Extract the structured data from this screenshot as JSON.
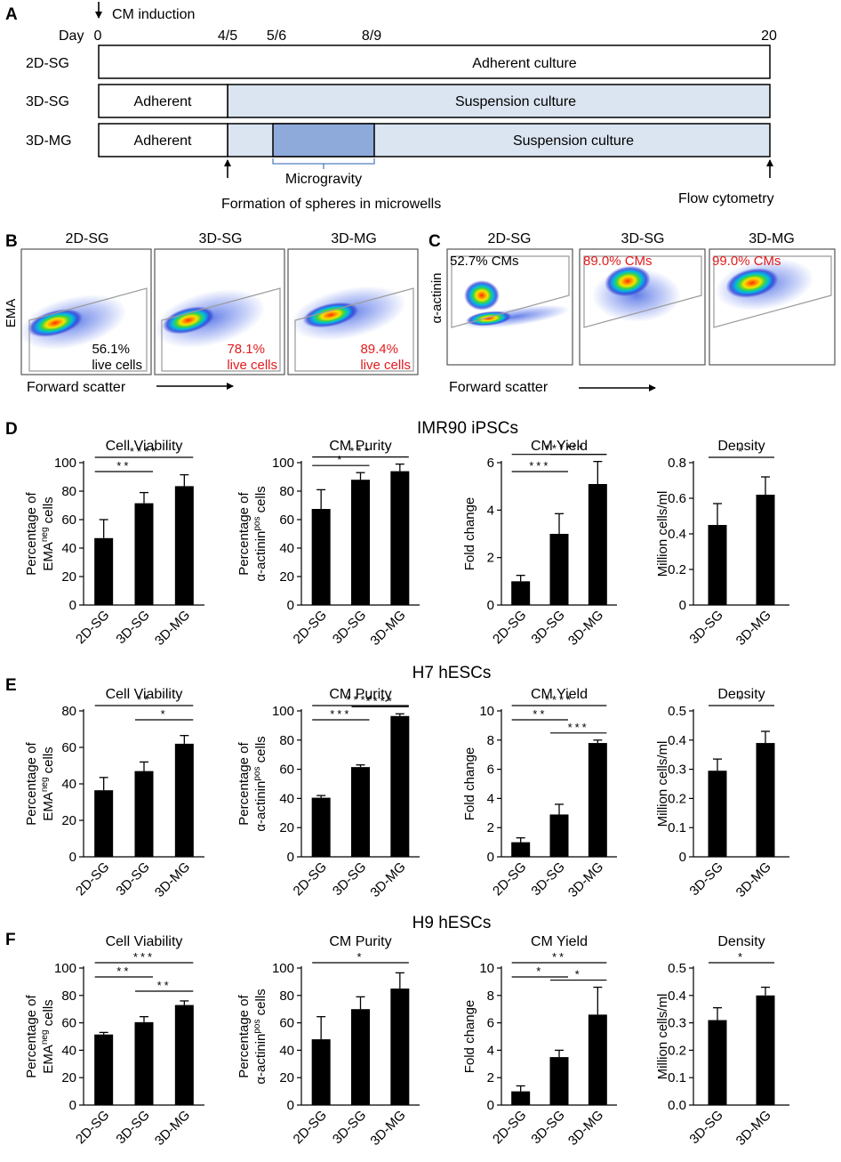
{
  "colors": {
    "ink": "#000000",
    "accent_red": "#e31a1c",
    "suspension_fill": "#dbe5f1",
    "microgravity_fill": "#8eaadb",
    "brace": "#4f81bd",
    "gate": "#9a9a9a"
  },
  "panelA": {
    "letter": "A",
    "induction_label": "CM induction",
    "day_label": "Day",
    "ticks": [
      "0",
      "4/5",
      "5/6",
      "8/9",
      "20"
    ],
    "rows": [
      {
        "name": "2D-SG",
        "segments": [
          "Adherent culture"
        ]
      },
      {
        "name": "3D-SG",
        "segments": [
          "Adherent",
          "Suspension culture"
        ]
      },
      {
        "name": "3D-MG",
        "segments": [
          "Adherent",
          "Suspension culture"
        ]
      }
    ],
    "microgravity_label": "Microgravity",
    "spheres_label": "Formation of spheres in microwells",
    "flow_label": "Flow cytometry"
  },
  "panelB": {
    "letter": "B",
    "ylabel": "EMA",
    "xlabel": "Forward scatter",
    "plots": [
      {
        "title": "2D-SG",
        "value": "56.1%",
        "suffix": "live cells",
        "highlight": false
      },
      {
        "title": "3D-SG",
        "value": "78.1%",
        "suffix": "live cells",
        "highlight": true
      },
      {
        "title": "3D-MG",
        "value": "89.4%",
        "suffix": "live cells",
        "highlight": true
      }
    ]
  },
  "panelC": {
    "letter": "C",
    "ylabel": "α-actinin",
    "xlabel": "Forward scatter",
    "plots": [
      {
        "title": "2D-SG",
        "label": "52.7% CMs",
        "highlight": false
      },
      {
        "title": "3D-SG",
        "label": "89.0% CMs",
        "highlight": true
      },
      {
        "title": "3D-MG",
        "label": "99.0% CMs",
        "highlight": true
      }
    ]
  },
  "chart_data": [
    {
      "panel": "D",
      "cell_line": "IMR90 iPSCs",
      "type": "bar",
      "title": "Cell Viability",
      "ylabel": "Percentage of EMA^neg cells",
      "categories": [
        "2D-SG",
        "3D-SG",
        "3D-MG"
      ],
      "values": [
        47,
        71.5,
        83.5
      ],
      "errors": [
        13,
        7.5,
        8
      ],
      "ylim": [
        0,
        100
      ],
      "yticks": [
        "0",
        "20",
        "40",
        "60",
        "80",
        "100"
      ],
      "significance": [
        {
          "from": 0,
          "to": 1,
          "label": "**"
        },
        {
          "from": 0,
          "to": 2,
          "label": "****"
        }
      ]
    },
    {
      "panel": "D",
      "cell_line": "IMR90 iPSCs",
      "type": "bar",
      "title": "CM Purity",
      "ylabel": "Percentage of α-actinin^pos cells",
      "categories": [
        "2D-SG",
        "3D-SG",
        "3D-MG"
      ],
      "values": [
        67.5,
        88,
        94
      ],
      "errors": [
        13.5,
        5,
        5
      ],
      "ylim": [
        0,
        100
      ],
      "yticks": [
        "0",
        "20",
        "40",
        "60",
        "80",
        "100"
      ],
      "significance": [
        {
          "from": 0,
          "to": 1,
          "label": "*"
        },
        {
          "from": 0,
          "to": 2,
          "label": "***"
        }
      ]
    },
    {
      "panel": "D",
      "cell_line": "IMR90 iPSCs",
      "type": "bar",
      "title": "CM Yield",
      "ylabel": "Fold change",
      "categories": [
        "2D-SG",
        "3D-SG",
        "3D-MG"
      ],
      "values": [
        1,
        3,
        5.1
      ],
      "errors": [
        0.25,
        0.85,
        0.95
      ],
      "ylim": [
        0,
        6
      ],
      "yticks": [
        "0",
        "2",
        "4",
        "6"
      ],
      "significance": [
        {
          "from": 0,
          "to": 1,
          "label": "***"
        },
        {
          "from": 1,
          "to": 2,
          "label": "**"
        },
        {
          "from": 0,
          "to": 2,
          "label": "****"
        }
      ]
    },
    {
      "panel": "D",
      "cell_line": "IMR90 iPSCs",
      "type": "bar",
      "title": "Density",
      "ylabel": "Million cells/ml",
      "categories": [
        "3D-SG",
        "3D-MG"
      ],
      "values": [
        0.45,
        0.62
      ],
      "errors": [
        0.12,
        0.1
      ],
      "ylim": [
        0,
        0.8
      ],
      "yticks": [
        "0",
        "0.2",
        "0.4",
        "0.6",
        "0.8"
      ],
      "significance": [
        {
          "from": 0,
          "to": 1,
          "label": "*"
        }
      ]
    },
    {
      "panel": "E",
      "cell_line": "H7 hESCs",
      "type": "bar",
      "title": "Cell Viability",
      "ylabel": "Percentage of EMA^neg cells",
      "categories": [
        "2D-SG",
        "3D-SG",
        "3D-MG"
      ],
      "values": [
        36.5,
        47,
        62
      ],
      "errors": [
        7,
        5,
        4.5
      ],
      "ylim": [
        0,
        80
      ],
      "yticks": [
        "0",
        "20",
        "40",
        "60",
        "80"
      ],
      "significance": [
        {
          "from": 1,
          "to": 2,
          "label": "*"
        },
        {
          "from": 0,
          "to": 2,
          "label": "**"
        }
      ]
    },
    {
      "panel": "E",
      "cell_line": "H7 hESCs",
      "type": "bar",
      "title": "CM Purity",
      "ylabel": "Percentage of α-actinin^pos cells",
      "categories": [
        "2D-SG",
        "3D-SG",
        "3D-MG"
      ],
      "values": [
        40.5,
        61.5,
        96.5
      ],
      "errors": [
        1.5,
        1.5,
        1.5
      ],
      "ylim": [
        0,
        100
      ],
      "yticks": [
        "0",
        "20",
        "40",
        "60",
        "80",
        "100"
      ],
      "significance": [
        {
          "from": 0,
          "to": 1,
          "label": "***"
        },
        {
          "from": 1,
          "to": 2,
          "label": "****"
        },
        {
          "from": 0,
          "to": 2,
          "label": "****"
        }
      ]
    },
    {
      "panel": "E",
      "cell_line": "H7 hESCs",
      "type": "bar",
      "title": "CM Yield",
      "ylabel": "Fold change",
      "categories": [
        "2D-SG",
        "3D-SG",
        "3D-MG"
      ],
      "values": [
        1,
        2.9,
        7.8
      ],
      "errors": [
        0.3,
        0.7,
        0.2
      ],
      "ylim": [
        0,
        10
      ],
      "yticks": [
        "0",
        "2",
        "4",
        "6",
        "8",
        "10"
      ],
      "significance": [
        {
          "from": 0,
          "to": 1,
          "label": "**"
        },
        {
          "from": 1,
          "to": 2,
          "label": "***"
        },
        {
          "from": 0,
          "to": 2,
          "label": "****"
        }
      ]
    },
    {
      "panel": "E",
      "cell_line": "H7 hESCs",
      "type": "bar",
      "title": "Density",
      "ylabel": "Million cells/ml",
      "categories": [
        "3D-SG",
        "3D-MG"
      ],
      "values": [
        0.295,
        0.39
      ],
      "errors": [
        0.04,
        0.04
      ],
      "ylim": [
        0,
        0.5
      ],
      "yticks": [
        "0",
        "0.1",
        "0.2",
        "0.3",
        "0.4",
        "0.5"
      ],
      "significance": [
        {
          "from": 0,
          "to": 1,
          "label": "*"
        }
      ]
    },
    {
      "panel": "F",
      "cell_line": "H9 hESCs",
      "type": "bar",
      "title": "Cell Viability",
      "ylabel": "Percentage of EMA^neg cells",
      "categories": [
        "2D-SG",
        "3D-SG",
        "3D-MG"
      ],
      "values": [
        51.5,
        60.5,
        73
      ],
      "errors": [
        1.5,
        4,
        3
      ],
      "ylim": [
        0,
        100
      ],
      "yticks": [
        "0",
        "20",
        "40",
        "60",
        "80",
        "100"
      ],
      "significance": [
        {
          "from": 0,
          "to": 1,
          "label": "**"
        },
        {
          "from": 1,
          "to": 2,
          "label": "**"
        },
        {
          "from": 0,
          "to": 2,
          "label": "***"
        }
      ]
    },
    {
      "panel": "F",
      "cell_line": "H9 hESCs",
      "type": "bar",
      "title": "CM Purity",
      "ylabel": "Percentage of α-actinin^pos cells",
      "categories": [
        "2D-SG",
        "3D-SG",
        "3D-MG"
      ],
      "values": [
        48,
        70,
        85
      ],
      "errors": [
        16.5,
        9,
        11.5
      ],
      "ylim": [
        0,
        100
      ],
      "yticks": [
        "0",
        "20",
        "40",
        "60",
        "80",
        "100"
      ],
      "significance": [
        {
          "from": 0,
          "to": 2,
          "label": "*"
        }
      ]
    },
    {
      "panel": "F",
      "cell_line": "H9 hESCs",
      "type": "bar",
      "title": "CM Yield",
      "ylabel": "Fold change",
      "categories": [
        "2D-SG",
        "3D-SG",
        "3D-MG"
      ],
      "values": [
        1,
        3.5,
        6.6
      ],
      "errors": [
        0.4,
        0.5,
        2
      ],
      "ylim": [
        0,
        10
      ],
      "yticks": [
        "0",
        "2",
        "4",
        "6",
        "8",
        "10"
      ],
      "significance": [
        {
          "from": 0,
          "to": 1,
          "label": "*"
        },
        {
          "from": 1,
          "to": 2,
          "label": "*"
        },
        {
          "from": 0,
          "to": 2,
          "label": "**"
        }
      ]
    },
    {
      "panel": "F",
      "cell_line": "H9 hESCs",
      "type": "bar",
      "title": "Density",
      "ylabel": "Million cells/ml",
      "categories": [
        "3D-SG",
        "3D-MG"
      ],
      "values": [
        0.31,
        0.4
      ],
      "errors": [
        0.045,
        0.03
      ],
      "ylim": [
        0,
        0.5
      ],
      "yticks": [
        "0.0",
        "0.1",
        "0.2",
        "0.3",
        "0.4",
        "0.5"
      ],
      "significance": [
        {
          "from": 0,
          "to": 1,
          "label": "*"
        }
      ]
    }
  ]
}
